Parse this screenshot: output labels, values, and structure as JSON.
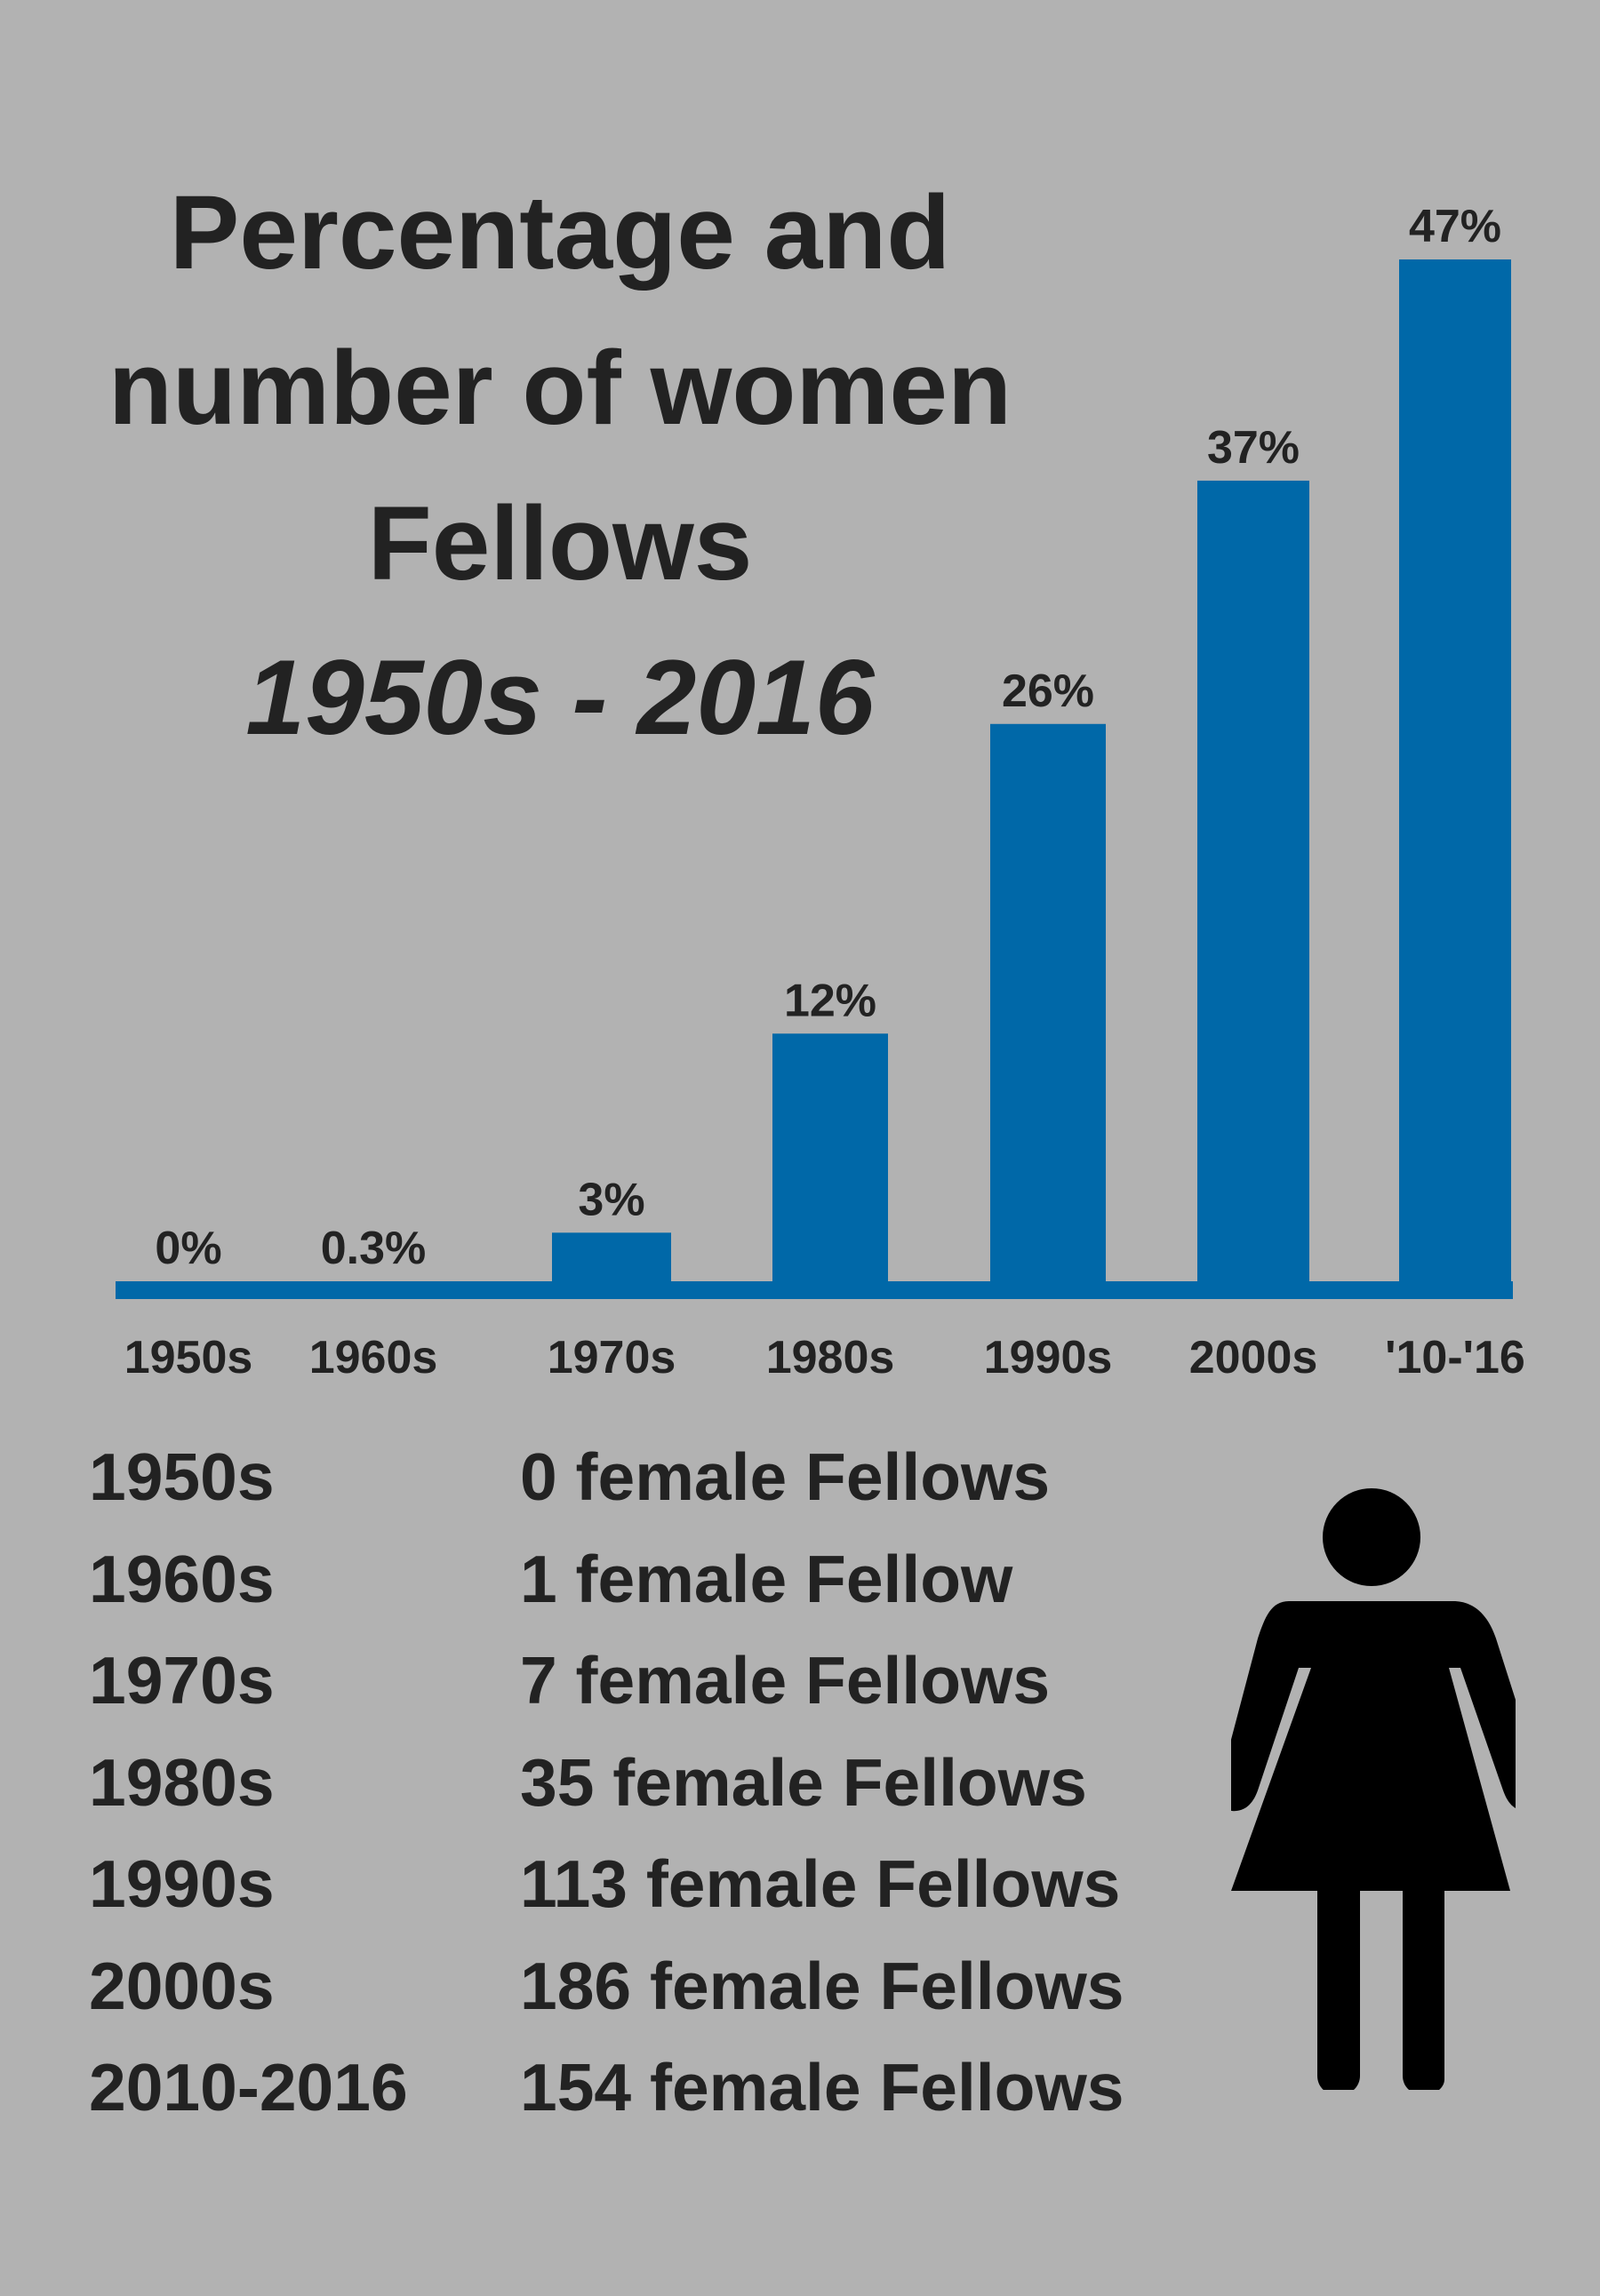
{
  "title_lines": [
    "Percentage and",
    "number of women",
    "Fellows"
  ],
  "subtitle": "1950s - 2016",
  "colors": {
    "bar": "#0068a8",
    "background": "#b2b2b2",
    "text": "#222222",
    "icon": "#000000"
  },
  "icon": "woman-icon",
  "chart_data": {
    "type": "bar",
    "categories": [
      "1950s",
      "1960s",
      "1970s",
      "1980s",
      "1990s",
      "2000s",
      "'10-'16"
    ],
    "values": [
      0,
      0.3,
      3,
      12,
      26,
      37,
      47
    ],
    "data_labels": [
      "0%",
      "0.3%",
      "3%",
      "12%",
      "26%",
      "37%",
      "47%"
    ],
    "ylim": [
      0,
      47
    ],
    "xlabel": "",
    "ylabel": "",
    "grid": false
  },
  "counts_table": [
    {
      "decade": "1950s",
      "count": "0 female Fellows"
    },
    {
      "decade": "1960s",
      "count": "1 female Fellow"
    },
    {
      "decade": "1970s",
      "count": "7 female Fellows"
    },
    {
      "decade": "1980s",
      "count": "35 female Fellows"
    },
    {
      "decade": "1990s",
      "count": "113 female Fellows"
    },
    {
      "decade": "2000s",
      "count": "186 female Fellows"
    },
    {
      "decade": "2010-2016",
      "count": "154 female Fellows"
    }
  ]
}
